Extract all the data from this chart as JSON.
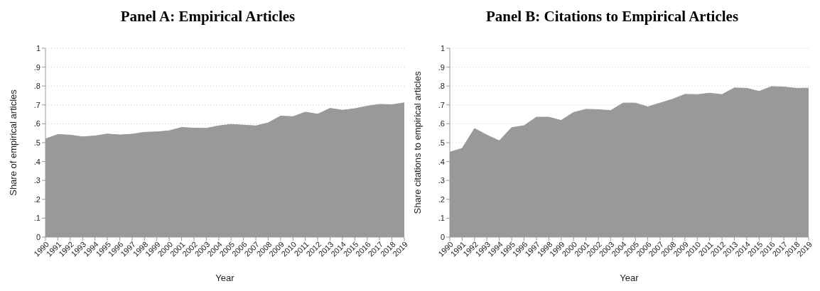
{
  "chart_data": [
    {
      "type": "area",
      "title": "Panel A: Empirical Articles",
      "xlabel": "Year",
      "ylabel": "Share of empirical articles",
      "x": [
        1990,
        1991,
        1992,
        1993,
        1994,
        1995,
        1996,
        1997,
        1998,
        1999,
        2000,
        2001,
        2002,
        2003,
        2004,
        2005,
        2006,
        2007,
        2008,
        2009,
        2010,
        2011,
        2012,
        2013,
        2014,
        2015,
        2016,
        2017,
        2018,
        2019
      ],
      "series": [
        {
          "color": "#999999",
          "values": [
            0.52,
            0.543,
            0.54,
            0.531,
            0.536,
            0.546,
            0.541,
            0.545,
            0.555,
            0.557,
            0.563,
            0.581,
            0.577,
            0.576,
            0.589,
            0.597,
            0.593,
            0.589,
            0.605,
            0.641,
            0.638,
            0.662,
            0.651,
            0.682,
            0.672,
            0.68,
            0.694,
            0.703,
            0.701,
            0.711
          ]
        }
      ],
      "xlim": [
        1990,
        2019
      ],
      "xticks": [
        1990,
        1991,
        1992,
        1993,
        1994,
        1995,
        1996,
        1997,
        1998,
        1999,
        2000,
        2001,
        2002,
        2003,
        2004,
        2005,
        2006,
        2007,
        2008,
        2009,
        2010,
        2011,
        2012,
        2013,
        2014,
        2015,
        2016,
        2017,
        2018,
        2019
      ],
      "ylim": [
        0,
        1
      ],
      "yticks": [
        {
          "value": 0,
          "label": "0"
        },
        {
          "value": 0.1,
          "label": ".1"
        },
        {
          "value": 0.2,
          "label": ".2"
        },
        {
          "value": 0.3,
          "label": ".3"
        },
        {
          "value": 0.4,
          "label": ".4"
        },
        {
          "value": 0.5,
          "label": ".5"
        },
        {
          "value": 0.6,
          "label": ".6"
        },
        {
          "value": 0.7,
          "label": ".7"
        },
        {
          "value": 0.8,
          "label": ".8"
        },
        {
          "value": 0.9,
          "label": ".9"
        },
        {
          "value": 1,
          "label": "1"
        }
      ],
      "grid": "y",
      "legend": false
    },
    {
      "type": "area",
      "title": "Panel B: Citations to Empirical Articles",
      "xlabel": "Year",
      "ylabel": "Share citations to empirical articles",
      "x": [
        1990,
        1991,
        1992,
        1993,
        1994,
        1995,
        1996,
        1997,
        1998,
        1999,
        2000,
        2001,
        2002,
        2003,
        2004,
        2005,
        2006,
        2007,
        2008,
        2009,
        2010,
        2011,
        2012,
        2013,
        2014,
        2015,
        2016,
        2017,
        2018,
        2019
      ],
      "series": [
        {
          "color": "#999999",
          "values": [
            0.45,
            0.47,
            0.575,
            0.54,
            0.51,
            0.58,
            0.59,
            0.635,
            0.635,
            0.618,
            0.66,
            0.677,
            0.675,
            0.67,
            0.71,
            0.71,
            0.69,
            0.71,
            0.73,
            0.756,
            0.755,
            0.762,
            0.755,
            0.79,
            0.788,
            0.772,
            0.797,
            0.795,
            0.788,
            0.789
          ]
        }
      ],
      "xlim": [
        1990,
        2019
      ],
      "xticks": [
        1990,
        1991,
        1992,
        1993,
        1994,
        1995,
        1996,
        1997,
        1998,
        1999,
        2000,
        2001,
        2002,
        2003,
        2004,
        2005,
        2006,
        2007,
        2008,
        2009,
        2010,
        2011,
        2012,
        2013,
        2014,
        2015,
        2016,
        2017,
        2018,
        2019
      ],
      "ylim": [
        0,
        1
      ],
      "yticks": [
        {
          "value": 0,
          "label": "0"
        },
        {
          "value": 0.1,
          "label": ".1"
        },
        {
          "value": 0.2,
          "label": ".2"
        },
        {
          "value": 0.3,
          "label": ".3"
        },
        {
          "value": 0.4,
          "label": ".4"
        },
        {
          "value": 0.5,
          "label": ".5"
        },
        {
          "value": 0.6,
          "label": ".6"
        },
        {
          "value": 0.7,
          "label": ".7"
        },
        {
          "value": 0.8,
          "label": ".8"
        },
        {
          "value": 0.9,
          "label": ".9"
        },
        {
          "value": 1,
          "label": "1"
        }
      ],
      "grid": "y",
      "legend": false
    }
  ]
}
